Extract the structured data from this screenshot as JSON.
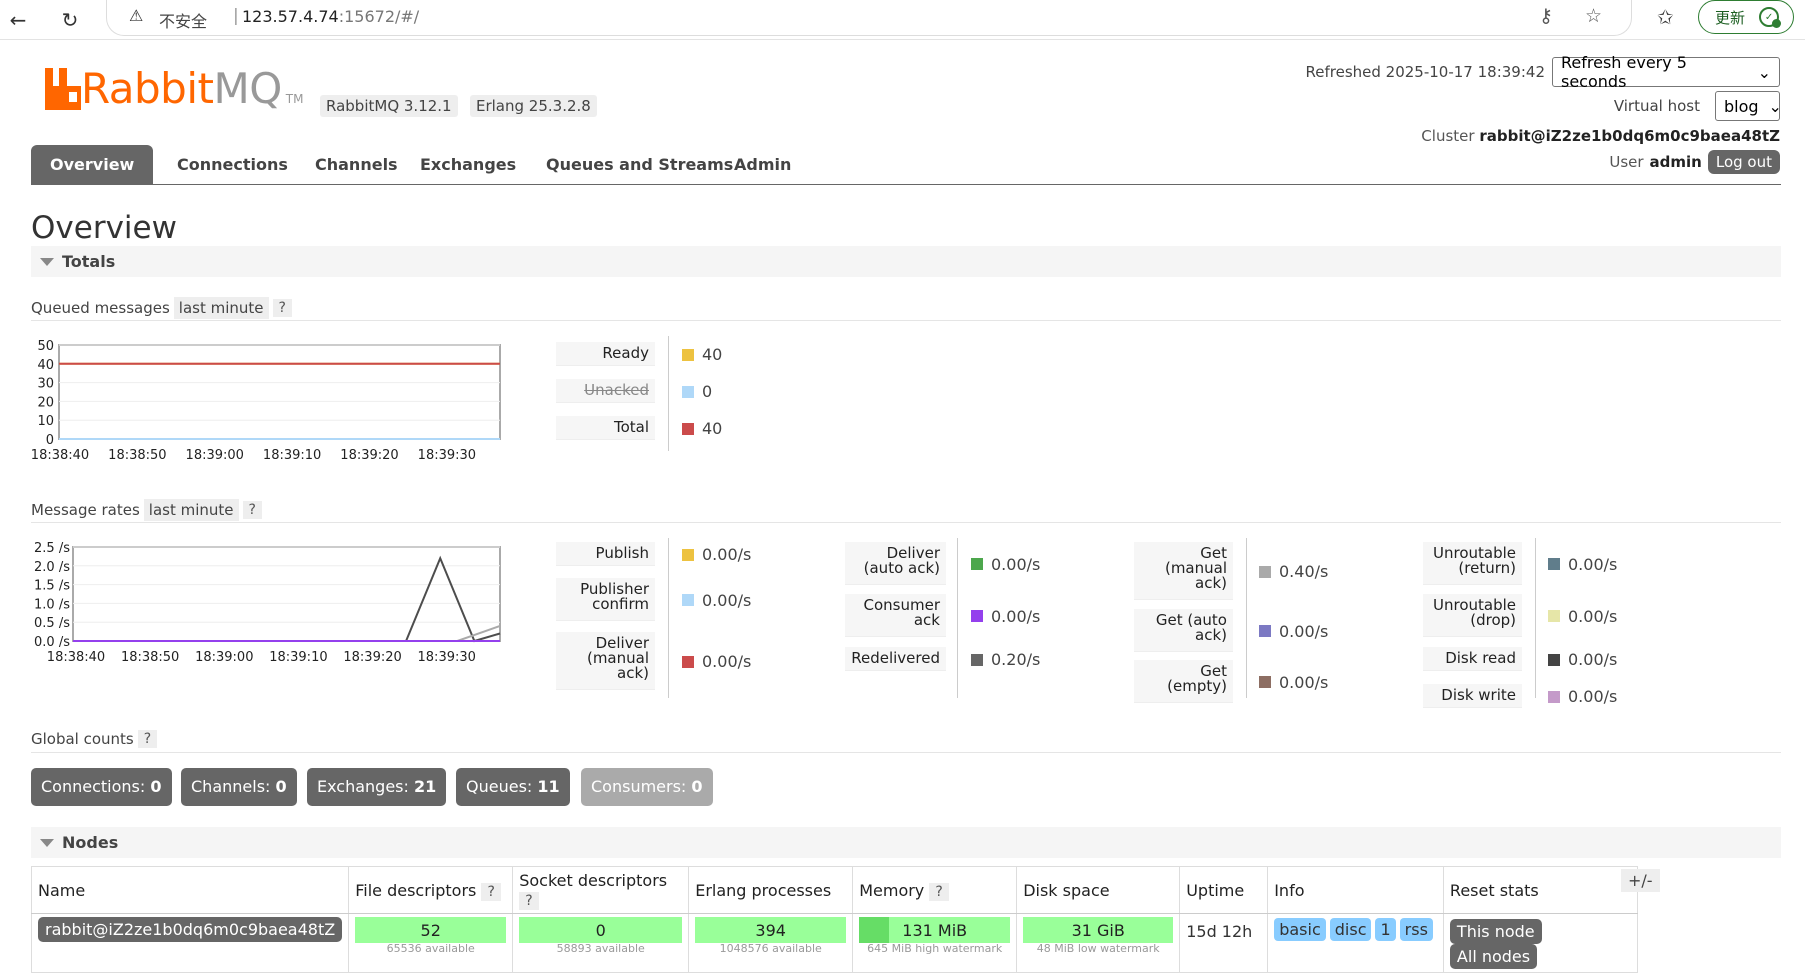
{
  "browser": {
    "insecure_label": "不安全",
    "url_host": "123.57.4.74",
    "url_path": ":15672/#/",
    "update_label": "更新"
  },
  "header": {
    "logo_primary": "Rabbit",
    "logo_secondary": "MQ",
    "logo_tm": "TM",
    "rabbit_version": "RabbitMQ 3.12.1",
    "erlang_version": "Erlang 25.3.2.8",
    "refreshed": "Refreshed 2025-10-17 18:39:42",
    "refresh_select": "Refresh every 5 seconds",
    "vhost_label": "Virtual host",
    "vhost_select": "blog",
    "cluster_label": "Cluster",
    "cluster_name": "rabbit@iZ2ze1b0dq6m0c9baea48tZ",
    "user_label": "User",
    "user_name": "admin",
    "logout": "Log out"
  },
  "tabs": [
    "Overview",
    "Connections",
    "Channels",
    "Exchanges",
    "Queues and Streams",
    "Admin"
  ],
  "page_title": "Overview",
  "totals": {
    "section_title": "Totals",
    "queued_label": "Queued messages",
    "rates_label": "Message rates",
    "range_pill": "last minute",
    "help": "?"
  },
  "chart_data": [
    {
      "type": "line",
      "title": "Queued messages",
      "x": [
        "18:38:40",
        "18:38:50",
        "18:39:00",
        "18:39:10",
        "18:39:20",
        "18:39:30"
      ],
      "ylim": [
        0,
        50
      ],
      "yticks": [
        "50",
        "40",
        "30",
        "20",
        "10",
        "0"
      ],
      "series": [
        {
          "name": "Ready",
          "color": "#edc240",
          "values": [
            40,
            40,
            40,
            40,
            40,
            40
          ]
        },
        {
          "name": "Unacked",
          "color": "#afd8f8",
          "values": [
            0,
            0,
            0,
            0,
            0,
            0
          ]
        },
        {
          "name": "Total",
          "color": "#cb4b4b",
          "values": [
            40,
            40,
            40,
            40,
            40,
            40
          ]
        }
      ]
    },
    {
      "type": "line",
      "title": "Message rates",
      "x": [
        "18:38:40",
        "18:38:50",
        "18:39:00",
        "18:39:10",
        "18:39:20",
        "18:39:30"
      ],
      "ylim": [
        0,
        2.5
      ],
      "yticks": [
        "2.5 /s",
        "2.0 /s",
        "1.5 /s",
        "1.0 /s",
        "0.5 /s",
        "0.0 /s"
      ],
      "series": [
        {
          "name": "Redelivered",
          "color": "#4d4d4d",
          "points": [
            [
              0,
              0
            ],
            [
              0.78,
              0
            ],
            [
              0.86,
              2.2
            ],
            [
              0.94,
              0
            ],
            [
              1,
              0.2
            ]
          ]
        },
        {
          "name": "Get (manual ack)",
          "color": "#aaaaaa",
          "points": [
            [
              0,
              0
            ],
            [
              0.9,
              0
            ],
            [
              1,
              0.4
            ]
          ]
        },
        {
          "name": "Consumer ack",
          "color": "#9440ed",
          "points": [
            [
              0,
              0
            ],
            [
              1,
              0
            ]
          ]
        }
      ]
    }
  ],
  "queued_stats": [
    {
      "label": "Ready",
      "value": "40",
      "color": "#edc240",
      "strike": false
    },
    {
      "label": "Unacked",
      "value": "0",
      "color": "#afd8f8",
      "strike": true
    },
    {
      "label": "Total",
      "value": "40",
      "color": "#cb4b4b",
      "strike": false
    }
  ],
  "rate_stats": {
    "col1": [
      {
        "label": "Publish",
        "value": "0.00/s",
        "color": "#edc240"
      },
      {
        "label": "Publisher confirm",
        "value": "0.00/s",
        "color": "#afd8f8"
      },
      {
        "label": "Deliver (manual ack)",
        "value": "0.00/s",
        "color": "#cb4b4b"
      }
    ],
    "col2": [
      {
        "label": "Deliver (auto ack)",
        "value": "0.00/s",
        "color": "#4da74d"
      },
      {
        "label": "Consumer ack",
        "value": "0.00/s",
        "color": "#9440ed"
      },
      {
        "label": "Redelivered",
        "value": "0.20/s",
        "color": "#666666"
      }
    ],
    "col3": [
      {
        "label": "Get (manual ack)",
        "value": "0.40/s",
        "color": "#aaaaaa"
      },
      {
        "label": "Get (auto ack)",
        "value": "0.00/s",
        "color": "#7c79c3"
      },
      {
        "label": "Get (empty)",
        "value": "0.00/s",
        "color": "#8d6e63"
      }
    ],
    "col4": [
      {
        "label": "Unroutable (return)",
        "value": "0.00/s",
        "color": "#607d8b"
      },
      {
        "label": "Unroutable (drop)",
        "value": "0.00/s",
        "color": "#e6e6a8"
      },
      {
        "label": "Disk read",
        "value": "0.00/s",
        "color": "#444444"
      },
      {
        "label": "Disk write",
        "value": "0.00/s",
        "color": "#c49ac9"
      }
    ]
  },
  "global_counts": {
    "label": "Global counts",
    "items": [
      {
        "label": "Connections:",
        "value": "0"
      },
      {
        "label": "Channels:",
        "value": "0"
      },
      {
        "label": "Exchanges:",
        "value": "21"
      },
      {
        "label": "Queues:",
        "value": "11"
      },
      {
        "label": "Consumers:",
        "value": "0"
      }
    ]
  },
  "nodes": {
    "section_title": "Nodes",
    "headers": [
      "Name",
      "File descriptors",
      "Socket descriptors",
      "Erlang processes",
      "Memory",
      "Disk space",
      "Uptime",
      "Info",
      "Reset stats"
    ],
    "toggle": "+/-",
    "row": {
      "name": "rabbit@iZ2ze1b0dq6m0c9baea48tZ",
      "file_descriptors": "52",
      "file_descriptors_sub": "65536 available",
      "socket_descriptors": "0",
      "socket_descriptors_sub": "58893 available",
      "erlang_processes": "394",
      "erlang_processes_sub": "1048576 available",
      "memory": "131 MiB",
      "memory_sub": "645 MiB high watermark",
      "memory_fraction": 0.2,
      "disk_space": "31 GiB",
      "disk_space_sub": "48 MiB low watermark",
      "uptime": "15d 12h",
      "info_tags": [
        "basic",
        "disc",
        "1",
        "rss"
      ],
      "reset_this": "This node",
      "reset_all": "All nodes"
    }
  }
}
